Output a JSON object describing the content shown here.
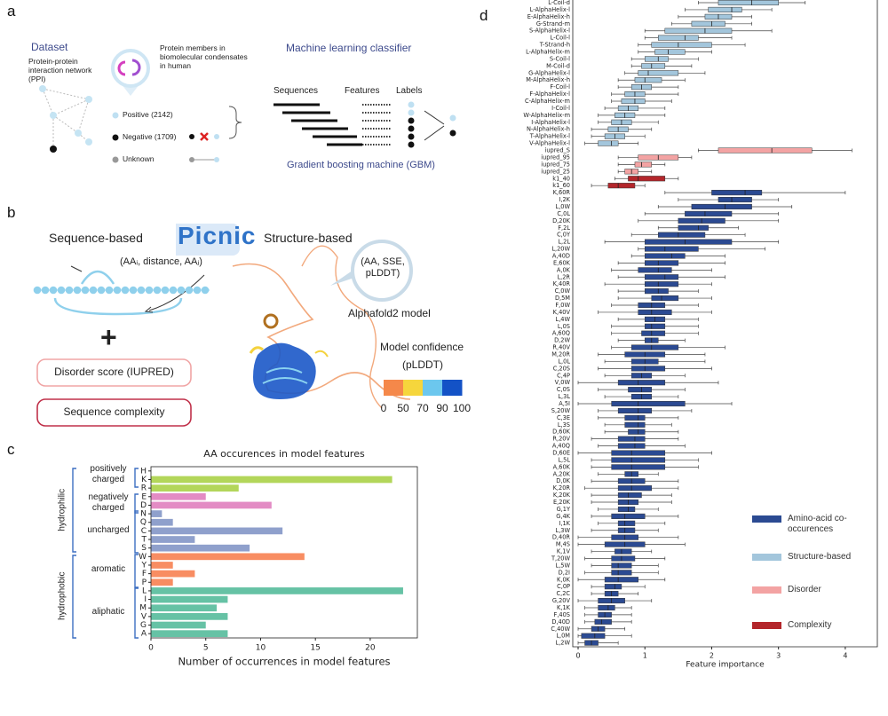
{
  "panel_labels": [
    "a",
    "b",
    "c",
    "d"
  ],
  "panel_a": {
    "dataset_title": "Dataset",
    "ppi": "Protein-protein interaction network (PPI)",
    "condensates": "Protein members in biomolecular condensates in human",
    "positive": "Positive (2142)",
    "negative": "Negative (1709)",
    "unknown": "Unknown",
    "ml_title": "Machine learning classifier",
    "sequences": "Sequences",
    "features": "Features",
    "labels": "Labels",
    "gbm": "Gradient boosting machine (GBM)"
  },
  "panel_b": {
    "sequence_based": "Sequence-based",
    "logo": "Picnic",
    "triplet": "(AAᵢ, distance, AAⱼ)",
    "structure_based": "Structure-based",
    "struct_features": "(AA, SSE, pLDDT)",
    "alphafold": "Alphafold2 model",
    "plus": "+",
    "disorder_box": "Disorder score (IUPRED)",
    "complexity_box": "Sequence complexity",
    "confidence_title": "Model confidence",
    "confidence_unit": "(pLDDT)",
    "confidence_ticks": [
      0,
      50,
      70,
      90,
      100
    ],
    "confidence_colors": [
      "#f5884a",
      "#f6d63c",
      "#6cc7ee",
      "#1352c6"
    ]
  },
  "chart_data": [
    {
      "type": "bar",
      "orientation": "horizontal",
      "title": "AA occurences in model features",
      "xlabel": "Number of occurrences in model features",
      "categories": [
        "H",
        "K",
        "R",
        "E",
        "D",
        "N",
        "Q",
        "C",
        "T",
        "S",
        "W",
        "Y",
        "F",
        "P",
        "L",
        "I",
        "M",
        "V",
        "G",
        "A"
      ],
      "values": [
        0,
        22,
        8,
        5,
        11,
        1,
        2,
        12,
        4,
        9,
        14,
        2,
        4,
        2,
        23,
        7,
        6,
        7,
        5,
        7
      ],
      "colors": [
        "#b3d65a",
        "#b3d65a",
        "#b3d65a",
        "#e38bc4",
        "#e38bc4",
        "#8fa0cc",
        "#8fa0cc",
        "#8fa0cc",
        "#8fa0cc",
        "#8fa0cc",
        "#f88d62",
        "#f88d62",
        "#f88d62",
        "#f88d62",
        "#66c2a5",
        "#66c2a5",
        "#66c2a5",
        "#66c2a5",
        "#66c2a5",
        "#66c2a5"
      ],
      "groups": [
        "positively charged",
        "negatively charged",
        "uncharged",
        "aromatic",
        "aliphatic"
      ],
      "classes": [
        "hydrophilic",
        "hydrophobic"
      ],
      "xlim": [
        0,
        24.3
      ],
      "xticks": [
        0,
        5,
        10,
        15,
        20
      ]
    },
    {
      "type": "box",
      "orientation": "horizontal",
      "xlabel": "Feature importance",
      "xlim": [
        -0.08,
        4.48
      ],
      "xticks": [
        0,
        1,
        2,
        3,
        4
      ],
      "legend": "lower right",
      "series": [
        {
          "name": "Structure-based",
          "color": "#a3c6dc",
          "labels": [
            "L-Coil-d",
            "L-AlphaHelix-l",
            "E-AlphaHelix-h",
            "G-Strand-m",
            "S-AlphaHelix-l",
            "L-Coil-l",
            "T-Strand-h",
            "L-AlphaHelix-m",
            "S-Coil-l",
            "M-Coil-d",
            "G-AlphaHelix-l",
            "M-AlphaHelix-h",
            "F-Coil-l",
            "F-AlphaHelix-l",
            "C-AlphaHelix-m",
            "I-Coil-l",
            "W-AlphaHelix-m",
            "I-AlphaHelix-l",
            "N-AlphaHelix-h",
            "T-AlphaHelix-l",
            "V-AlphaHelix-l"
          ],
          "boxes": [
            [
              1.8,
              2.1,
              2.6,
              3.0,
              3.4
            ],
            [
              1.6,
              1.95,
              2.3,
              2.45,
              2.9
            ],
            [
              1.5,
              1.9,
              2.1,
              2.3,
              2.6
            ],
            [
              1.4,
              1.7,
              2.0,
              2.2,
              2.6
            ],
            [
              1.0,
              1.3,
              1.9,
              2.3,
              2.9
            ],
            [
              1.0,
              1.2,
              1.6,
              1.8,
              2.3
            ],
            [
              0.9,
              1.1,
              1.5,
              2.0,
              2.5
            ],
            [
              0.9,
              1.15,
              1.35,
              1.6,
              2.0
            ],
            [
              0.8,
              1.0,
              1.2,
              1.35,
              1.8
            ],
            [
              0.8,
              0.95,
              1.1,
              1.3,
              1.7
            ],
            [
              0.7,
              0.9,
              1.05,
              1.5,
              1.9
            ],
            [
              0.6,
              0.85,
              1.0,
              1.25,
              1.6
            ],
            [
              0.6,
              0.8,
              0.95,
              1.1,
              1.5
            ],
            [
              0.5,
              0.7,
              0.85,
              1.0,
              1.5
            ],
            [
              0.5,
              0.65,
              0.85,
              1.0,
              1.4
            ],
            [
              0.4,
              0.6,
              0.75,
              0.9,
              1.3
            ],
            [
              0.3,
              0.55,
              0.7,
              0.85,
              1.3
            ],
            [
              0.3,
              0.5,
              0.65,
              0.8,
              1.2
            ],
            [
              0.2,
              0.45,
              0.6,
              0.75,
              1.1
            ],
            [
              0.2,
              0.4,
              0.55,
              0.7,
              1.0
            ],
            [
              0.1,
              0.3,
              0.5,
              0.6,
              0.9
            ]
          ]
        },
        {
          "name": "Disorder",
          "color": "#f3a3a3",
          "labels": [
            "iupred_S",
            "iupred_95",
            "iupred_75",
            "iupred_25"
          ],
          "boxes": [
            [
              1.8,
              2.1,
              2.9,
              3.5,
              4.1
            ],
            [
              0.6,
              0.9,
              1.2,
              1.5,
              1.7
            ],
            [
              0.6,
              0.85,
              0.95,
              1.1,
              1.3
            ],
            [
              0.6,
              0.7,
              0.8,
              0.9,
              1.1
            ]
          ]
        },
        {
          "name": "Complexity",
          "color": "#b3262b",
          "labels": [
            "k1_40",
            "k1_60"
          ],
          "boxes": [
            [
              0.55,
              0.75,
              0.9,
              1.3,
              1.5
            ],
            [
              0.2,
              0.45,
              0.6,
              0.85,
              1.0
            ]
          ]
        },
        {
          "name": "Amino-acid co-occurences",
          "color": "#2b4a92",
          "labels": [
            "K,60R",
            "I,2K",
            "L,0W",
            "C,0L",
            "D,20K",
            "F,2L",
            "C,0Y",
            "L,2L",
            "L,20W",
            "A,40D",
            "E,60K",
            "A,0K",
            "L,2R",
            "K,40R",
            "C,0W",
            "D,5M",
            "F,0W",
            "K,40V",
            "L,4W",
            "L,0S",
            "A,60Q",
            "D,2W",
            "R,40V",
            "M,20R",
            "L,0L",
            "C,20S",
            "C,4P",
            "V,0W",
            "C,0S",
            "L,3L",
            "A,5I",
            "S,20W",
            "C,3E",
            "L,3S",
            "D,60K",
            "R,20V",
            "A,40Q",
            "D,60E",
            "L,5L",
            "A,60K",
            "A,20K",
            "D,0K",
            "K,20R",
            "K,20K",
            "E,20K",
            "G,1Y",
            "G,4K",
            "I,1K",
            "L,3W",
            "D,40R",
            "M,4S",
            "K,1V",
            "T,20W",
            "L,5W",
            "D,2I",
            "K,0K",
            "C,0P",
            "C,2C",
            "G,20V",
            "K,1K",
            "F,40S",
            "D,40D",
            "C,40W",
            "L,0M",
            "L,2W"
          ],
          "boxes": [
            [
              1.3,
              2.0,
              2.5,
              2.75,
              4.0
            ],
            [
              1.5,
              2.1,
              2.3,
              2.6,
              3.0
            ],
            [
              1.2,
              1.7,
              2.2,
              2.6,
              3.2
            ],
            [
              1.0,
              1.6,
              1.9,
              2.3,
              3.0
            ],
            [
              0.9,
              1.5,
              1.85,
              2.2,
              3.0
            ],
            [
              1.2,
              1.5,
              1.8,
              1.95,
              2.4
            ],
            [
              0.8,
              1.2,
              1.5,
              1.9,
              2.5
            ],
            [
              0.4,
              1.0,
              1.6,
              2.3,
              3.0
            ],
            [
              0.9,
              1.0,
              1.3,
              1.8,
              2.8
            ],
            [
              0.8,
              1.0,
              1.4,
              1.6,
              2.2
            ],
            [
              0.6,
              1.0,
              1.2,
              1.5,
              2.2
            ],
            [
              0.5,
              0.9,
              1.2,
              1.4,
              2.0
            ],
            [
              0.6,
              1.0,
              1.3,
              1.5,
              2.2
            ],
            [
              0.4,
              1.0,
              1.2,
              1.5,
              2.0
            ],
            [
              0.6,
              1.0,
              1.2,
              1.35,
              1.8
            ],
            [
              0.6,
              1.1,
              1.25,
              1.5,
              2.0
            ],
            [
              0.5,
              0.9,
              1.1,
              1.3,
              1.8
            ],
            [
              0.3,
              0.9,
              1.1,
              1.4,
              2.0
            ],
            [
              0.6,
              1.0,
              1.15,
              1.3,
              1.8
            ],
            [
              0.5,
              1.0,
              1.1,
              1.3,
              1.8
            ],
            [
              0.5,
              0.95,
              1.1,
              1.3,
              1.8
            ],
            [
              0.6,
              1.0,
              1.1,
              1.2,
              1.6
            ],
            [
              0.5,
              0.8,
              1.1,
              1.5,
              2.2
            ],
            [
              0.3,
              0.7,
              1.0,
              1.3,
              1.9
            ],
            [
              0.4,
              0.8,
              1.0,
              1.2,
              1.9
            ],
            [
              0.3,
              0.8,
              1.0,
              1.3,
              2.0
            ],
            [
              0.4,
              0.8,
              0.95,
              1.1,
              1.6
            ],
            [
              0.0,
              0.6,
              0.9,
              1.3,
              2.1
            ],
            [
              0.3,
              0.75,
              0.95,
              1.1,
              1.6
            ],
            [
              0.4,
              0.8,
              0.95,
              1.1,
              1.5
            ],
            [
              0.0,
              0.5,
              0.9,
              1.6,
              2.3
            ],
            [
              0.3,
              0.6,
              0.9,
              1.1,
              1.7
            ],
            [
              0.3,
              0.7,
              0.9,
              1.0,
              1.5
            ],
            [
              0.4,
              0.7,
              0.9,
              1.0,
              1.4
            ],
            [
              0.4,
              0.75,
              0.9,
              1.0,
              1.5
            ],
            [
              0.2,
              0.6,
              0.85,
              1.0,
              1.5
            ],
            [
              0.3,
              0.6,
              0.85,
              1.0,
              1.6
            ],
            [
              0.0,
              0.5,
              0.8,
              1.3,
              2.0
            ],
            [
              0.2,
              0.5,
              0.8,
              1.3,
              1.8
            ],
            [
              0.2,
              0.5,
              0.8,
              1.3,
              1.8
            ],
            [
              0.3,
              0.7,
              0.8,
              0.9,
              1.2
            ],
            [
              0.2,
              0.6,
              0.8,
              1.0,
              1.5
            ],
            [
              0.1,
              0.6,
              0.8,
              1.1,
              1.5
            ],
            [
              0.2,
              0.6,
              0.75,
              0.95,
              1.4
            ],
            [
              0.2,
              0.6,
              0.75,
              0.9,
              1.4
            ],
            [
              0.3,
              0.6,
              0.75,
              0.85,
              1.2
            ],
            [
              0.2,
              0.5,
              0.7,
              1.0,
              1.5
            ],
            [
              0.3,
              0.6,
              0.7,
              0.85,
              1.3
            ],
            [
              0.2,
              0.6,
              0.7,
              0.85,
              1.2
            ],
            [
              0.0,
              0.5,
              0.7,
              0.9,
              1.5
            ],
            [
              0.0,
              0.4,
              0.7,
              1.0,
              1.6
            ],
            [
              0.2,
              0.55,
              0.65,
              0.8,
              1.1
            ],
            [
              0.1,
              0.5,
              0.65,
              0.85,
              1.3
            ],
            [
              0.2,
              0.5,
              0.6,
              0.8,
              1.2
            ],
            [
              0.1,
              0.5,
              0.6,
              0.8,
              1.2
            ],
            [
              0.0,
              0.4,
              0.6,
              0.9,
              1.3
            ],
            [
              0.2,
              0.4,
              0.55,
              0.65,
              1.0
            ],
            [
              0.2,
              0.4,
              0.5,
              0.6,
              0.9
            ],
            [
              0.0,
              0.3,
              0.5,
              0.7,
              1.1
            ],
            [
              0.1,
              0.3,
              0.45,
              0.55,
              0.8
            ],
            [
              0.1,
              0.3,
              0.4,
              0.5,
              0.8
            ],
            [
              0.1,
              0.25,
              0.35,
              0.5,
              0.8
            ],
            [
              0.0,
              0.2,
              0.3,
              0.4,
              0.7
            ],
            [
              0.0,
              0.05,
              0.25,
              0.4,
              0.8
            ],
            [
              0.0,
              0.1,
              0.2,
              0.3,
              0.6
            ]
          ]
        }
      ]
    }
  ]
}
